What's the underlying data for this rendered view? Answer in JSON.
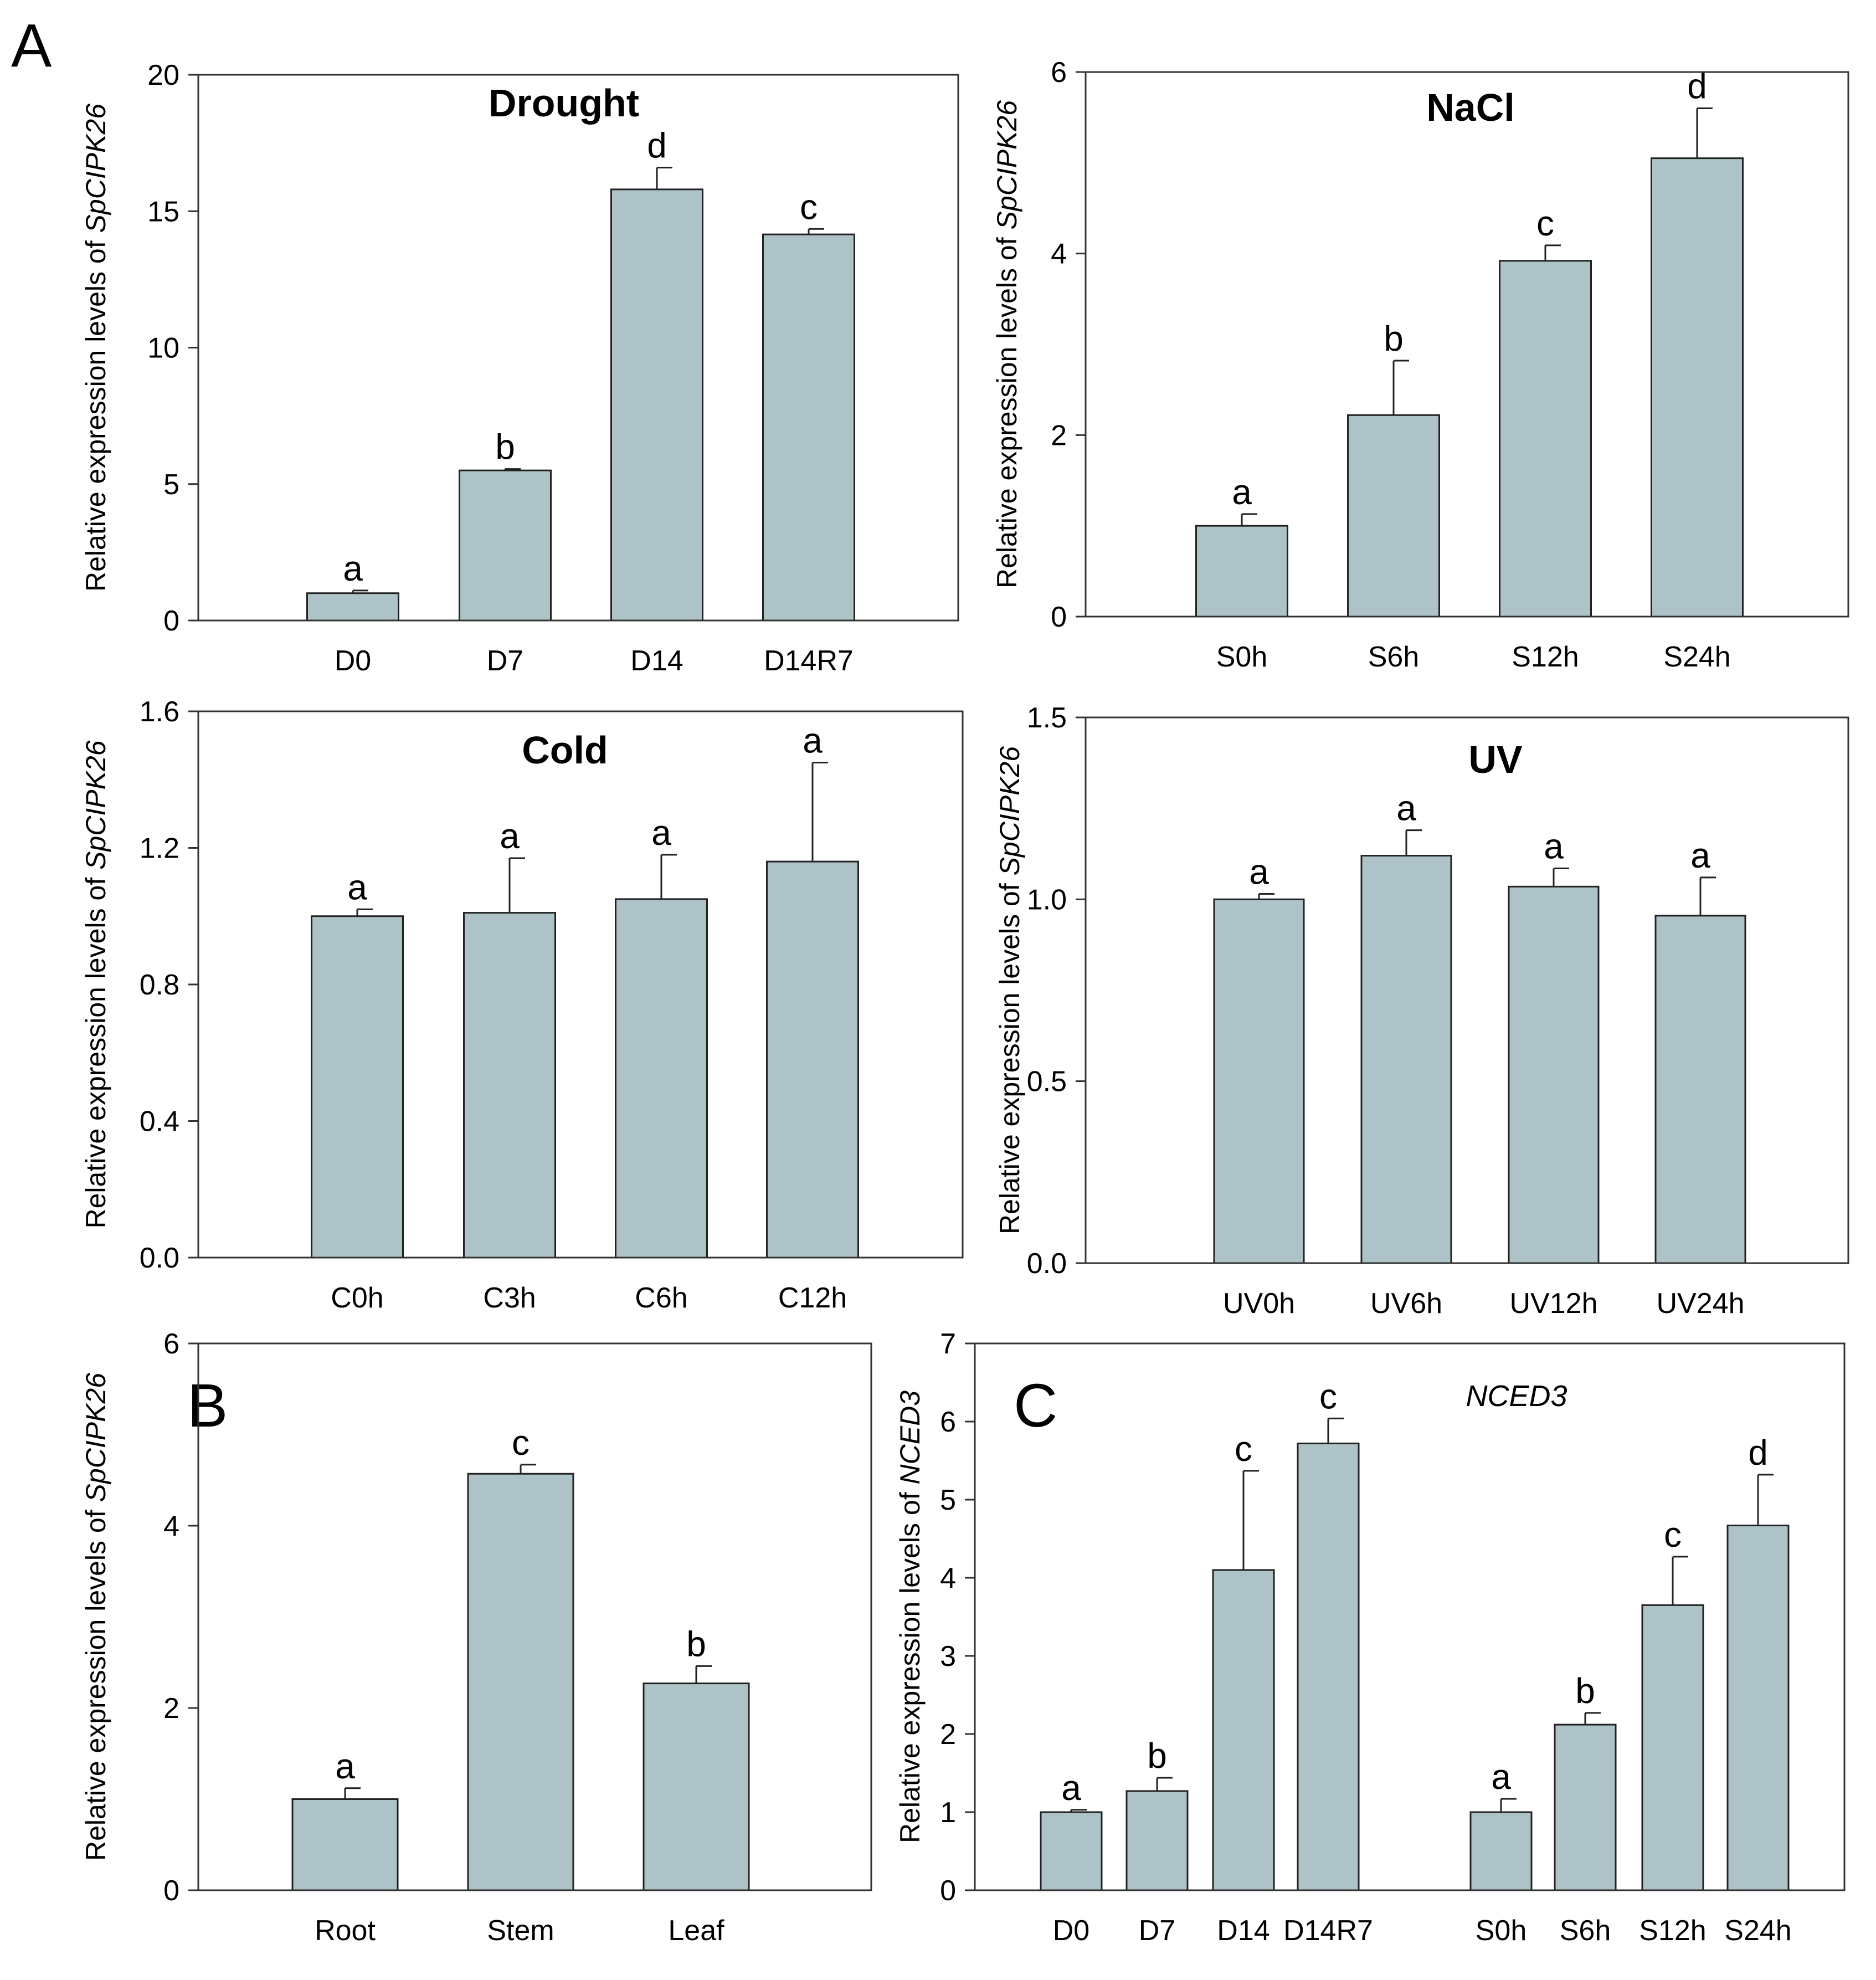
{
  "panel_labels": {
    "A": "A",
    "B": "B",
    "C": "C"
  },
  "colors": {
    "bar": "#adc3c7",
    "stroke": "#222222",
    "frame": "#333333"
  },
  "chart_data": [
    {
      "id": "drought",
      "type": "bar",
      "title": "Drought",
      "ylabel_prefix": "Relative expression levels of ",
      "ylabel_gene": "SpCIPK26",
      "ylim": [
        0,
        20
      ],
      "yticks": [
        0,
        5,
        10,
        15,
        20
      ],
      "ytick_labels": [
        "0",
        "5",
        "10",
        "15",
        "20"
      ],
      "categories": [
        "D0",
        "D7",
        "D14",
        "D14R7"
      ],
      "values": [
        1.0,
        5.5,
        15.8,
        14.15
      ],
      "errors": [
        0.1,
        0.05,
        0.8,
        0.2
      ],
      "letters": [
        "a",
        "b",
        "d",
        "c"
      ]
    },
    {
      "id": "nacl",
      "type": "bar",
      "title": "NaCl",
      "ylabel_prefix": "Relative expression levels of ",
      "ylabel_gene": "SpCIPK26",
      "ylim": [
        0,
        6
      ],
      "yticks": [
        0,
        2,
        4,
        6
      ],
      "ytick_labels": [
        "0",
        "2",
        "4",
        "6"
      ],
      "categories": [
        "S0h",
        "S6h",
        "S12h",
        "S24h"
      ],
      "values": [
        1.0,
        2.22,
        3.92,
        5.05
      ],
      "errors": [
        0.13,
        0.6,
        0.17,
        0.55
      ],
      "letters": [
        "a",
        "b",
        "c",
        "d"
      ]
    },
    {
      "id": "cold",
      "type": "bar",
      "title": "Cold",
      "ylabel_prefix": "Relative expression levels of ",
      "ylabel_gene": "SpCIPK26",
      "ylim": [
        0,
        1.6
      ],
      "yticks": [
        0,
        0.4,
        0.8,
        1.2,
        1.6
      ],
      "ytick_labels": [
        "0.0",
        "0.4",
        "0.8",
        "1.2",
        "1.6"
      ],
      "categories": [
        "C0h",
        "C3h",
        "C6h",
        "C12h"
      ],
      "values": [
        1.0,
        1.01,
        1.05,
        1.16
      ],
      "errors": [
        0.02,
        0.16,
        0.13,
        0.29
      ],
      "letters": [
        "a",
        "a",
        "a",
        "a"
      ]
    },
    {
      "id": "uv",
      "type": "bar",
      "title": "UV",
      "ylabel_prefix": "Relative expression levels of ",
      "ylabel_gene": "SpCIPK26",
      "ylim": [
        0,
        1.5
      ],
      "yticks": [
        0,
        0.5,
        1.0,
        1.5
      ],
      "ytick_labels": [
        "0.0",
        "0.5",
        "1.0",
        "1.5"
      ],
      "categories": [
        "UV0h",
        "UV6h",
        "UV12h",
        "UV24h"
      ],
      "values": [
        1.0,
        1.12,
        1.035,
        0.955
      ],
      "errors": [
        0.015,
        0.07,
        0.05,
        0.105
      ],
      "letters": [
        "a",
        "a",
        "a",
        "a"
      ]
    },
    {
      "id": "tissue",
      "type": "bar",
      "title": "",
      "ylabel_prefix": "Relative expression levels of ",
      "ylabel_gene": "SpCIPK26",
      "ylim": [
        0,
        6
      ],
      "yticks": [
        0,
        2,
        4,
        6
      ],
      "ytick_labels": [
        "0",
        "2",
        "4",
        "6"
      ],
      "categories": [
        "Root",
        "Stem",
        "Leaf"
      ],
      "values": [
        1.0,
        4.57,
        2.27
      ],
      "errors": [
        0.12,
        0.1,
        0.19
      ],
      "letters": [
        "a",
        "c",
        "b"
      ]
    },
    {
      "id": "nced3",
      "type": "bar",
      "title": "NCED3",
      "ylabel_prefix": "Relative expression levels of ",
      "ylabel_gene": "NCED3",
      "ylim": [
        0,
        7
      ],
      "yticks": [
        0,
        1,
        2,
        3,
        4,
        5,
        6,
        7
      ],
      "ytick_labels": [
        "0",
        "1",
        "2",
        "3",
        "4",
        "5",
        "6",
        "7"
      ],
      "categories": [
        "D0",
        "D7",
        "D14",
        "D14R7",
        "S0h",
        "S6h",
        "S12h",
        "S24h"
      ],
      "values": [
        1.0,
        1.27,
        4.1,
        5.72,
        1.0,
        2.12,
        3.65,
        4.67
      ],
      "errors": [
        0.03,
        0.17,
        1.27,
        0.32,
        0.17,
        0.15,
        0.62,
        0.65
      ],
      "letters": [
        "a",
        "b",
        "c",
        "c",
        "a",
        "b",
        "c",
        "d"
      ]
    }
  ]
}
